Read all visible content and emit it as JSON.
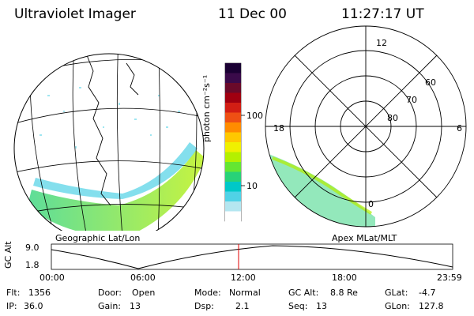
{
  "header": {
    "instrument": "Ultraviolet Imager",
    "date": "11 Dec 00",
    "time": "11:27:17 UT"
  },
  "colorbar": {
    "label": "photon cm⁻²s⁻¹",
    "ticks": [
      "100",
      "10"
    ],
    "scale": "log",
    "colors": [
      "#1a0033",
      "#3a0a4a",
      "#6a0a2a",
      "#a00010",
      "#d21e14",
      "#ee5014",
      "#ff8c00",
      "#ffc800",
      "#f0f000",
      "#b4f000",
      "#64e632",
      "#28d278",
      "#00c8c8",
      "#50d2e6",
      "#b4e6f0",
      "#ffffff"
    ]
  },
  "left_panel": {
    "caption": "Geographic Lat/Lon"
  },
  "right_panel": {
    "caption": "Apex MLat/MLT",
    "mlt_labels": [
      "12",
      "18",
      "6",
      "0"
    ],
    "lat_labels": [
      "60",
      "70",
      "80"
    ]
  },
  "altitude_plot": {
    "ylabel": "GC Alt",
    "yticks": [
      "9.0",
      "1.8"
    ],
    "xticks": [
      "00:00",
      "06:00",
      "12:00",
      "18:00",
      "23:59"
    ],
    "current_time_marker": "11:27",
    "marker_color": "#e00000"
  },
  "footer": {
    "flt_label": "Flt:",
    "flt_value": "1356",
    "ip_label": "IP:",
    "ip_value": "36.0",
    "door_label": "Door:",
    "door_value": "Open",
    "gain_label": "Gain:",
    "gain_value": "13",
    "mode_label": "Mode:",
    "mode_value": "Normal",
    "dsp_label": "Dsp:",
    "dsp_value": "2.1",
    "gcalt_label": "GC Alt:",
    "gcalt_value": "8.8 Re",
    "seq_label": "Seq:",
    "seq_value": "13",
    "glat_label": "GLat:",
    "glat_value": "-4.7",
    "glon_label": "GLon:",
    "glon_value": "127.8"
  }
}
